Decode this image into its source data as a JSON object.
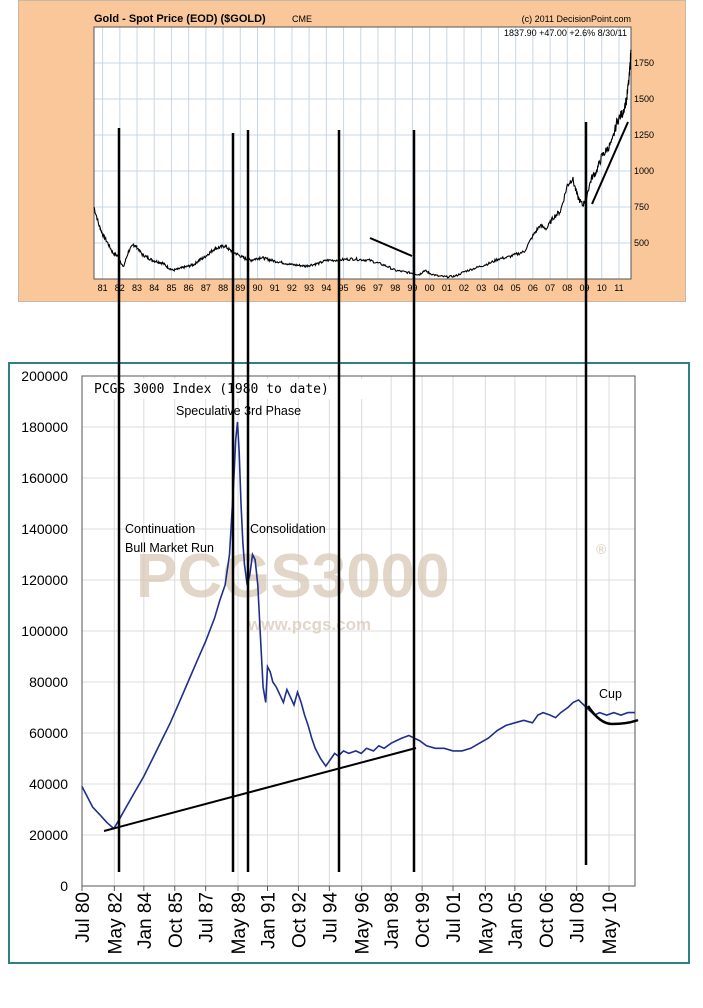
{
  "chart_data": [
    {
      "type": "line",
      "title": "Gold - Spot Price (EOD) ($GOLD)",
      "title_suffix": "CME",
      "copyright": "(c) 2011 DecisionPoint.com",
      "readout": "1837.90   +47.00   +2.6%   8/30/11",
      "x_tick_labels": [
        "81",
        "82",
        "83",
        "84",
        "85",
        "86",
        "87",
        "88",
        "89",
        "90",
        "91",
        "92",
        "93",
        "94",
        "95",
        "96",
        "97",
        "98",
        "99",
        "00",
        "01",
        "02",
        "03",
        "04",
        "05",
        "06",
        "07",
        "08",
        "09",
        "10",
        "11"
      ],
      "y_ticks": [
        500,
        750,
        1000,
        1250,
        1500,
        1750
      ],
      "x_start_year": 1980.5,
      "x_end_year": 2011.7,
      "ylim": [
        250,
        2000
      ],
      "grid": true,
      "series": [
        {
          "x": [
            1980.5,
            1980.8,
            1981.0,
            1981.3,
            1981.6,
            1981.9,
            1982.2,
            1982.5,
            1982.8,
            1983.0,
            1983.3,
            1983.6,
            1983.9,
            1984.2,
            1984.5,
            1984.8,
            1985.1,
            1985.4,
            1985.7,
            1986.0,
            1986.3,
            1986.6,
            1986.9,
            1987.2,
            1987.5,
            1987.8,
            1988.1,
            1988.4,
            1988.7,
            1989.0,
            1989.3,
            1989.6,
            1989.9,
            1990.2,
            1990.5,
            1990.8,
            1991.2,
            1991.6,
            1992.0,
            1992.4,
            1992.8,
            1993.2,
            1993.6,
            1994.0,
            1994.5,
            1995.0,
            1995.5,
            1996.0,
            1996.5,
            1997.0,
            1997.5,
            1998.0,
            1998.5,
            1999.0,
            1999.4,
            1999.7,
            2000.0,
            2000.5,
            2001.0,
            2001.5,
            2002.0,
            2002.5,
            2003.0,
            2003.5,
            2004.0,
            2004.5,
            2005.0,
            2005.5,
            2006.0,
            2006.4,
            2006.8,
            2007.2,
            2007.6,
            2008.0,
            2008.3,
            2008.6,
            2008.9,
            2009.1,
            2009.4,
            2009.7,
            2010.0,
            2010.3,
            2010.6,
            2010.9,
            2011.2,
            2011.45,
            2011.6,
            2011.7
          ],
          "values": [
            750,
            620,
            560,
            500,
            430,
            410,
            330,
            440,
            490,
            470,
            420,
            400,
            380,
            370,
            360,
            330,
            310,
            320,
            330,
            340,
            350,
            380,
            400,
            430,
            460,
            470,
            480,
            450,
            430,
            410,
            390,
            380,
            390,
            400,
            390,
            380,
            370,
            360,
            350,
            345,
            340,
            350,
            360,
            380,
            380,
            385,
            390,
            385,
            380,
            360,
            340,
            310,
            300,
            290,
            280,
            310,
            290,
            270,
            265,
            270,
            300,
            320,
            340,
            360,
            390,
            400,
            420,
            440,
            550,
            620,
            600,
            680,
            720,
            900,
            950,
            820,
            760,
            820,
            950,
            1000,
            1100,
            1150,
            1200,
            1350,
            1400,
            1500,
            1650,
            1837
          ]
        }
      ]
    },
    {
      "type": "line",
      "title": "PCGS 3000 Index (1980 to date)",
      "watermark_logo": "PCGS3000",
      "watermark_url": "www.pcgs.com",
      "y_ticks": [
        0,
        20000,
        40000,
        60000,
        80000,
        100000,
        120000,
        140000,
        160000,
        180000,
        200000
      ],
      "y_tick_labels": [
        "0",
        "20000",
        "40000",
        "60000",
        "80000",
        "100000",
        "120000",
        "140000",
        "160000",
        "180000",
        "200000"
      ],
      "ylim": [
        0,
        200000
      ],
      "x_tick_labels": [
        "Jul 80",
        "May 82",
        "Jan 84",
        "Oct 85",
        "Jul 87",
        "May 89",
        "Jan 91",
        "Oct 92",
        "Jul 94",
        "May 96",
        "Jan 98",
        "Oct 99",
        "Jul 01",
        "May 03",
        "Jan 05",
        "Oct 06",
        "Jul 08",
        "May 10"
      ],
      "x_tick_dates": [
        1980.5,
        1982.33,
        1984.0,
        1985.75,
        1987.5,
        1989.33,
        1991.0,
        1992.75,
        1994.5,
        1996.33,
        1998.0,
        1999.75,
        2001.5,
        2003.33,
        2005.0,
        2006.75,
        2008.5,
        2010.33
      ],
      "x_start_year": 1980.5,
      "x_end_year": 2011.8,
      "grid": true,
      "series": [
        {
          "x": [
            1980.5,
            1980.8,
            1981.1,
            1981.5,
            1981.9,
            1982.3,
            1982.6,
            1983.0,
            1983.5,
            1984.0,
            1984.5,
            1985.0,
            1985.5,
            1986.0,
            1986.5,
            1987.0,
            1987.5,
            1988.0,
            1988.3,
            1988.6,
            1988.85,
            1989.0,
            1989.1,
            1989.2,
            1989.3,
            1989.4,
            1989.5,
            1989.6,
            1989.7,
            1989.85,
            1990.0,
            1990.15,
            1990.3,
            1990.45,
            1990.6,
            1990.75,
            1990.9,
            1991.0,
            1991.15,
            1991.3,
            1991.5,
            1991.7,
            1991.9,
            1992.1,
            1992.3,
            1992.5,
            1992.7,
            1992.9,
            1993.1,
            1993.3,
            1993.5,
            1993.7,
            1994.0,
            1994.3,
            1994.6,
            1994.8,
            1995.0,
            1995.3,
            1995.6,
            1996.0,
            1996.3,
            1996.6,
            1997.0,
            1997.3,
            1997.6,
            1998.0,
            1998.3,
            1998.6,
            1999.0,
            1999.3,
            1999.6,
            2000.0,
            2000.5,
            2001.0,
            2001.5,
            2002.0,
            2002.5,
            2003.0,
            2003.5,
            2004.0,
            2004.5,
            2005.0,
            2005.5,
            2006.0,
            2006.3,
            2006.6,
            2007.0,
            2007.3,
            2007.6,
            2008.0,
            2008.3,
            2008.6,
            2008.9,
            2009.2,
            2009.5,
            2009.8,
            2010.2,
            2010.6,
            2011.0,
            2011.4,
            2011.8
          ],
          "values": [
            39000,
            35000,
            31000,
            28000,
            25000,
            22500,
            26000,
            31000,
            37000,
            43000,
            50000,
            57000,
            64000,
            72000,
            80000,
            88000,
            96000,
            105000,
            112000,
            118000,
            130000,
            148000,
            160000,
            175000,
            182000,
            170000,
            150000,
            135000,
            126000,
            118000,
            122000,
            130000,
            128000,
            118000,
            98000,
            78000,
            72000,
            86000,
            84000,
            80000,
            78000,
            75000,
            72000,
            77000,
            74000,
            71000,
            76000,
            72000,
            67000,
            63000,
            58000,
            54000,
            50000,
            47000,
            50000,
            52000,
            51000,
            53000,
            52000,
            53000,
            52000,
            54000,
            53000,
            55000,
            54000,
            56000,
            57000,
            58000,
            59000,
            58000,
            57000,
            55000,
            54000,
            54000,
            53000,
            53000,
            54000,
            56000,
            58000,
            61000,
            63000,
            64000,
            65000,
            64000,
            67000,
            68000,
            67000,
            66000,
            68000,
            70000,
            72000,
            73000,
            71000,
            69000,
            67000,
            68000,
            67000,
            68000,
            67000,
            68000,
            68000
          ]
        }
      ],
      "annotations": [
        {
          "text": "Speculative 3rd Phase"
        },
        {
          "text": "Continuation"
        },
        {
          "text": "Bull Market Run"
        },
        {
          "text": "Consolidation"
        },
        {
          "text": "Cup"
        }
      ]
    }
  ]
}
